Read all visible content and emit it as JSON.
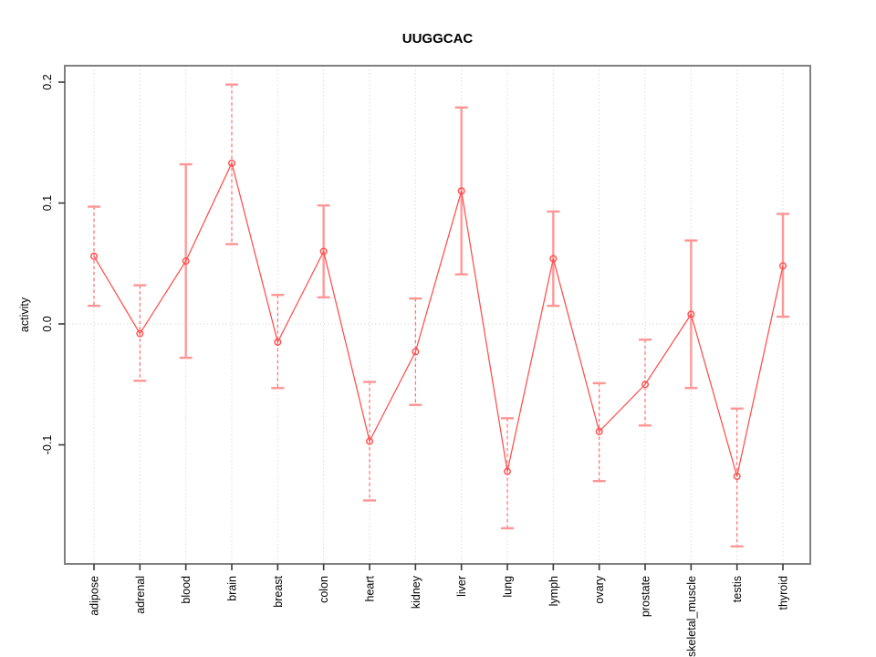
{
  "window": {
    "background": "#ffffff"
  },
  "chart_data": {
    "type": "line",
    "title": "UUGGCAC",
    "xlabel": "",
    "ylabel": "activity",
    "legend": "none",
    "grid": {
      "vertical_dotted_per_category": true,
      "horizontal_dotted_at_zero": true
    },
    "categories": [
      "adipose",
      "adrenal",
      "blood",
      "brain",
      "breast",
      "colon",
      "heart",
      "kidney",
      "liver",
      "lung",
      "lymph",
      "ovary",
      "prostate",
      "skeletal_muscle",
      "testis",
      "thyroid"
    ],
    "series": [
      {
        "name": "activity",
        "marker": "open-circle",
        "values": [
          0.056,
          -0.008,
          0.052,
          0.133,
          -0.015,
          0.06,
          -0.097,
          -0.023,
          0.11,
          -0.122,
          0.054,
          -0.089,
          -0.05,
          0.008,
          -0.126,
          0.048
        ],
        "ci_low": [
          0.015,
          -0.047,
          -0.028,
          0.066,
          -0.053,
          0.022,
          -0.146,
          -0.067,
          0.041,
          -0.169,
          0.015,
          -0.13,
          -0.084,
          -0.053,
          -0.184,
          0.006
        ],
        "ci_high": [
          0.097,
          0.032,
          0.132,
          0.198,
          0.024,
          0.098,
          -0.048,
          0.021,
          0.179,
          -0.078,
          0.093,
          -0.049,
          -0.013,
          0.069,
          -0.07,
          0.091
        ],
        "error_bar_styles": [
          "dashed",
          "dashed",
          "solid",
          "dashed",
          "dashed",
          "solid",
          "dashed",
          "dashed",
          "solid",
          "dashed",
          "solid",
          "dashed",
          "dashed",
          "solid",
          "dashed",
          "solid"
        ]
      }
    ],
    "yticks": [
      -0.1,
      0.0,
      0.1,
      0.2
    ],
    "ytick_labels": [
      "-0.1",
      "0.0",
      "0.1",
      "0.2"
    ],
    "ylim": [
      -0.199,
      0.213
    ],
    "colors": {
      "line": "#ff4d4d",
      "point_stroke": "#ff4d4d",
      "error_bar_solid": "#ff9999",
      "error_bar_dashed": "#ff5f5f",
      "error_cap": "#ff9595",
      "gridline": "#dcdcdc",
      "frame": "#808080",
      "tick": "#383838",
      "text": "#000000"
    }
  }
}
